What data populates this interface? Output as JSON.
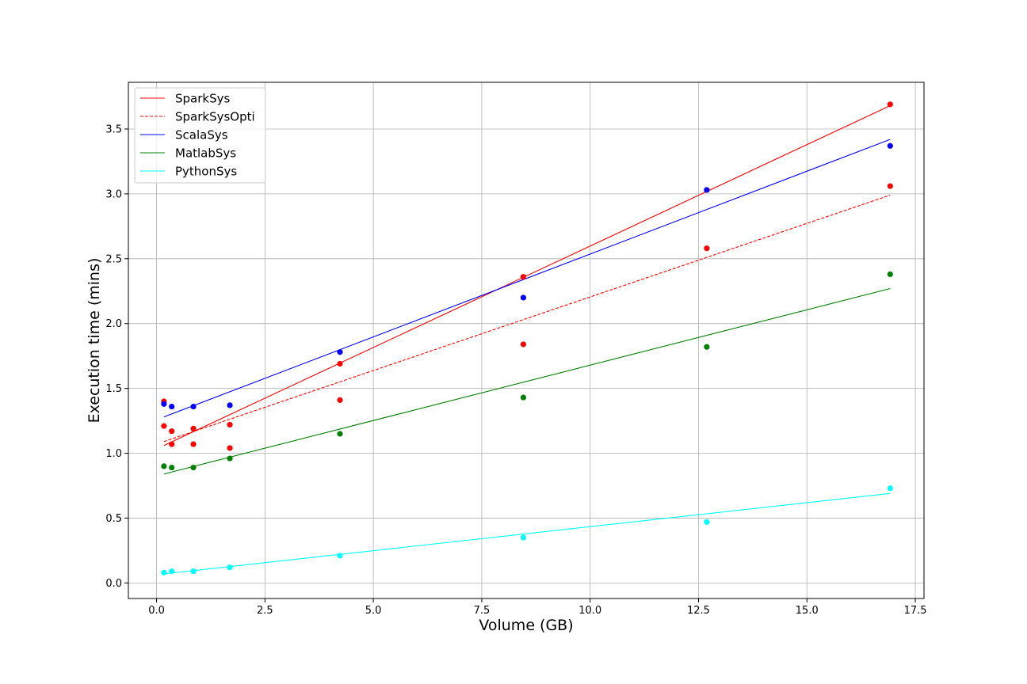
{
  "chart_data": {
    "type": "scatter",
    "xlabel": "Volume (GB)",
    "ylabel": "Execution time (mins)",
    "xlim": [
      -0.65,
      17.7
    ],
    "ylim": [
      -0.12,
      3.86
    ],
    "xticks": [
      0.0,
      2.5,
      5.0,
      7.5,
      10.0,
      12.5,
      15.0,
      17.5
    ],
    "xtick_labels": [
      "0.0",
      "2.5",
      "5.0",
      "7.5",
      "10.0",
      "12.5",
      "15.0",
      "17.5"
    ],
    "yticks": [
      0.0,
      0.5,
      1.0,
      1.5,
      2.0,
      2.5,
      3.0,
      3.5
    ],
    "ytick_labels": [
      "0.0",
      "0.5",
      "1.0",
      "1.5",
      "2.0",
      "2.5",
      "3.0",
      "3.5"
    ],
    "grid": true,
    "legend_position": "top-left",
    "series": [
      {
        "name": "SparkSys",
        "color": "#ff0000",
        "line_style": "solid",
        "x": [
          0.17,
          0.35,
          0.85,
          1.69,
          4.23,
          8.46,
          12.69,
          16.92
        ],
        "y": [
          1.21,
          1.17,
          1.19,
          1.22,
          1.69,
          2.36,
          3.03,
          3.69
        ],
        "fit_line": [
          [
            0.17,
            1.06
          ],
          [
            16.92,
            3.68
          ]
        ]
      },
      {
        "name": "SparkSysOpti",
        "color": "#ff0000",
        "line_style": "dashed",
        "x": [
          0.17,
          0.35,
          0.85,
          1.69,
          4.23,
          8.46,
          12.69,
          16.92
        ],
        "y": [
          1.4,
          1.07,
          1.07,
          1.04,
          1.41,
          1.84,
          2.58,
          3.06
        ],
        "fit_line": [
          [
            0.17,
            1.09
          ],
          [
            16.92,
            2.99
          ]
        ]
      },
      {
        "name": "ScalaSys",
        "color": "#0000ff",
        "line_style": "solid",
        "x": [
          0.17,
          0.35,
          0.85,
          1.69,
          4.23,
          8.46,
          12.69,
          16.92
        ],
        "y": [
          1.38,
          1.36,
          1.36,
          1.37,
          1.78,
          2.2,
          3.03,
          3.37
        ],
        "fit_line": [
          [
            0.17,
            1.28
          ],
          [
            16.92,
            3.42
          ]
        ]
      },
      {
        "name": "MatlabSys",
        "color": "#008000",
        "line_style": "solid",
        "x": [
          0.17,
          0.35,
          0.85,
          1.69,
          4.23,
          8.46,
          12.69,
          16.92
        ],
        "y": [
          0.9,
          0.89,
          0.89,
          0.96,
          1.15,
          1.43,
          1.82,
          2.38
        ],
        "fit_line": [
          [
            0.17,
            0.84
          ],
          [
            16.92,
            2.27
          ]
        ]
      },
      {
        "name": "PythonSys",
        "color": "#00ffff",
        "line_style": "solid",
        "x": [
          0.17,
          0.35,
          0.85,
          1.69,
          4.23,
          8.46,
          12.69,
          16.92
        ],
        "y": [
          0.08,
          0.09,
          0.09,
          0.12,
          0.21,
          0.35,
          0.47,
          0.73
        ],
        "fit_line": [
          [
            0.17,
            0.07
          ],
          [
            16.92,
            0.69
          ]
        ]
      }
    ]
  }
}
